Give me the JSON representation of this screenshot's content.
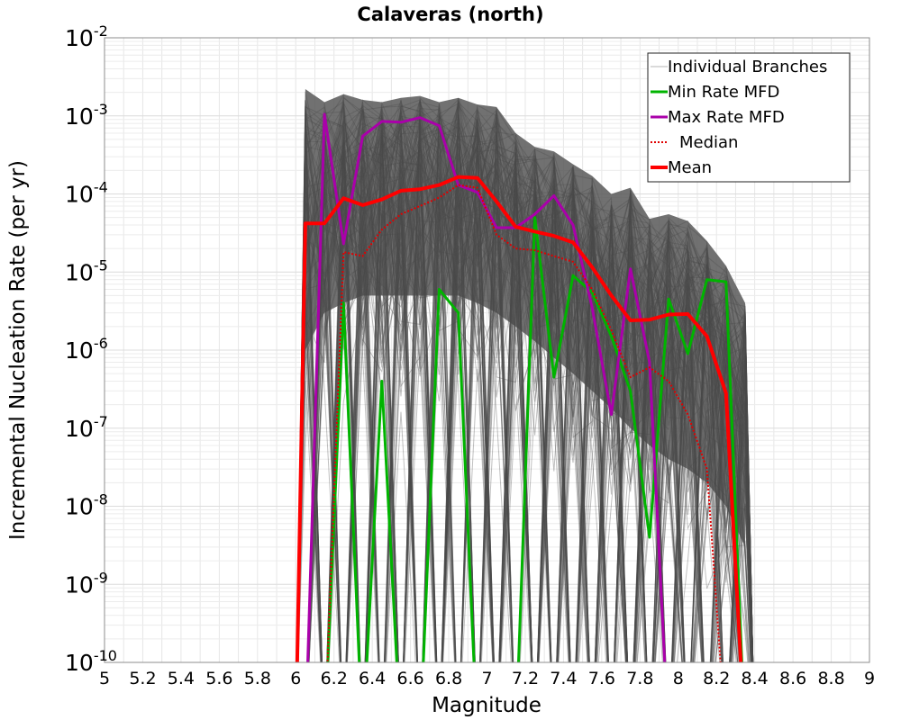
{
  "chart_data": {
    "type": "line",
    "title": "Calaveras (north)",
    "xlabel": "Magnitude",
    "ylabel": "Incremental Nucleation Rate (per yr)",
    "xlim": [
      5,
      9
    ],
    "ylim": [
      1e-10,
      0.01
    ],
    "yscale": "log",
    "grid": true,
    "legend_position": "top-right",
    "x_ticks": [
      "5",
      "5.2",
      "5.4",
      "5.6",
      "5.8",
      "6",
      "6.2",
      "6.4",
      "6.6",
      "6.8",
      "7",
      "7.2",
      "7.4",
      "7.6",
      "7.8",
      "8",
      "8.2",
      "8.4",
      "8.6",
      "8.8",
      "9"
    ],
    "y_ticks": [
      {
        "base": "10",
        "exp": "-10"
      },
      {
        "base": "10",
        "exp": "-9"
      },
      {
        "base": "10",
        "exp": "-8"
      },
      {
        "base": "10",
        "exp": "-7"
      },
      {
        "base": "10",
        "exp": "-6"
      },
      {
        "base": "10",
        "exp": "-5"
      },
      {
        "base": "10",
        "exp": "-4"
      },
      {
        "base": "10",
        "exp": "-3"
      },
      {
        "base": "10",
        "exp": "-2"
      }
    ],
    "x": [
      6.05,
      6.15,
      6.25,
      6.35,
      6.45,
      6.55,
      6.65,
      6.75,
      6.85,
      6.95,
      7.05,
      7.15,
      7.25,
      7.35,
      7.45,
      7.55,
      7.65,
      7.75,
      7.85,
      7.95,
      8.05,
      8.15,
      8.25,
      8.35
    ],
    "band": {
      "upper": [
        0.0022,
        0.0015,
        0.0019,
        0.0016,
        0.0015,
        0.0017,
        0.0018,
        0.0015,
        0.0017,
        0.0014,
        0.0013,
        0.0006,
        0.0004,
        0.00035,
        0.00024,
        0.00017,
        0.0001,
        0.00012,
        4.8e-05,
        5.5e-05,
        4.5e-05,
        2.5e-05,
        1.2e-05,
        4e-06
      ],
      "lower_dense": [
        1e-06,
        3e-06,
        4e-06,
        5e-06,
        5e-06,
        5e-06,
        5e-06,
        5e-06,
        5e-06,
        4e-06,
        3e-06,
        2e-06,
        1.3e-06,
        8e-07,
        5e-07,
        3e-07,
        1.8e-07,
        1e-07,
        6e-08,
        4e-08,
        3e-08,
        2e-08,
        1e-08,
        3e-09
      ]
    },
    "series": [
      {
        "name": "Individual Branches",
        "color": "#5a5a5a",
        "style": "thin",
        "note_count": 160
      },
      {
        "name": "Min Rate MFD",
        "color": "#00b400",
        "style": "solid",
        "x": [
          6.05,
          6.15,
          6.25,
          6.35,
          6.45,
          6.55,
          6.65,
          6.75,
          6.85,
          6.95,
          7.05,
          7.15,
          7.25,
          7.35,
          7.45,
          7.55,
          7.65,
          7.75,
          7.85,
          7.95,
          8.05,
          8.15,
          8.25,
          8.35
        ],
        "values": [
          null,
          null,
          4e-06,
          null,
          4e-07,
          null,
          null,
          6e-06,
          3e-06,
          null,
          null,
          null,
          5e-05,
          4.5e-07,
          9e-06,
          5.5e-06,
          1.5e-06,
          3e-07,
          4e-09,
          4.5e-06,
          9e-07,
          8e-06,
          7.5e-06,
          null
        ]
      },
      {
        "name": "Max Rate MFD",
        "color": "#aa00aa",
        "style": "solid",
        "x": [
          6.05,
          6.15,
          6.25,
          6.35,
          6.45,
          6.55,
          6.65,
          6.75,
          6.85,
          6.95,
          7.05,
          7.15,
          7.25,
          7.35,
          7.45,
          7.55,
          7.65,
          7.75,
          7.85,
          7.95,
          8.05,
          8.15,
          8.25,
          8.35
        ],
        "values": [
          null,
          0.00105,
          2.3e-05,
          0.00055,
          0.00085,
          0.00083,
          0.00095,
          0.00075,
          0.00013,
          0.000105,
          3.7e-05,
          3.7e-05,
          5.5e-05,
          9.5e-05,
          4e-05,
          3.5e-06,
          1.5e-07,
          1.1e-05,
          7e-07,
          null,
          null,
          null,
          null,
          null
        ]
      },
      {
        "name": "Median",
        "color": "#e00000",
        "style": "dotted",
        "x": [
          6.05,
          6.15,
          6.25,
          6.35,
          6.45,
          6.55,
          6.65,
          6.75,
          6.85,
          6.95,
          7.05,
          7.15,
          7.25,
          7.35,
          7.45,
          7.55,
          7.65,
          7.75,
          7.85,
          7.95,
          8.05,
          8.15,
          8.25,
          8.35
        ],
        "values": [
          null,
          null,
          1.8e-05,
          1.6e-05,
          3.5e-05,
          5.5e-05,
          7e-05,
          9e-05,
          0.00013,
          0.00012,
          3e-05,
          2e-05,
          1.9e-05,
          1.6e-05,
          1.35e-05,
          6e-06,
          1.8e-06,
          4.5e-07,
          6e-07,
          4e-07,
          1.5e-07,
          3e-08,
          null,
          null
        ]
      },
      {
        "name": "Mean",
        "color": "#ff0000",
        "style": "bold",
        "x": [
          6.05,
          6.15,
          6.25,
          6.35,
          6.45,
          6.55,
          6.65,
          6.75,
          6.85,
          6.95,
          7.05,
          7.15,
          7.25,
          7.35,
          7.45,
          7.55,
          7.65,
          7.75,
          7.85,
          7.95,
          8.05,
          8.15,
          8.25,
          8.35
        ],
        "values": [
          4.2e-05,
          4.2e-05,
          8.8e-05,
          7.2e-05,
          8.5e-05,
          0.00011,
          0.000115,
          0.00013,
          0.000165,
          0.00016,
          8e-05,
          3.8e-05,
          3.3e-05,
          2.9e-05,
          2.4e-05,
          1.15e-05,
          5e-06,
          2.4e-06,
          2.45e-06,
          2.85e-06,
          2.9e-06,
          1.5e-06,
          2.8e-07,
          null
        ]
      }
    ]
  }
}
